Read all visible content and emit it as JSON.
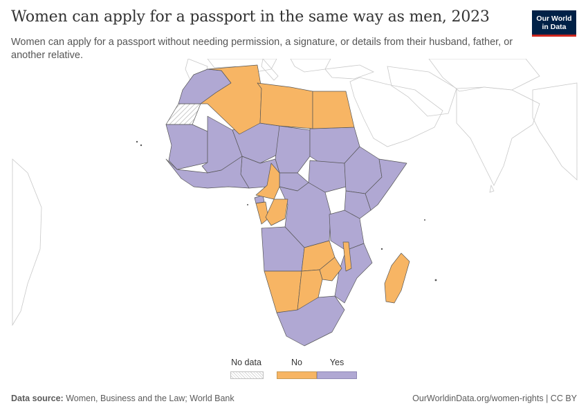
{
  "header": {
    "title": "Women can apply for a passport in the same way as men, 2023",
    "subtitle": "Women can apply for a passport without needing permission, a signature, or details from their husband, father, or another relative."
  },
  "logo": {
    "line1": "Our World",
    "line2": "in Data"
  },
  "colors": {
    "no": "#f7b564",
    "yes": "#b0a8d3",
    "border": "#555555",
    "land": "#ffffff",
    "no_data": "#e6e6e6"
  },
  "legend": {
    "items": [
      {
        "label": "No data",
        "category": "no_data"
      },
      {
        "label": "No",
        "category": "no"
      },
      {
        "label": "Yes",
        "category": "yes"
      }
    ]
  },
  "map_data": {
    "region": "Africa",
    "year": 2023,
    "countries_no": [
      "Algeria",
      "Libya",
      "Egypt",
      "Cameroon",
      "Gabon",
      "Republic of the Congo",
      "Zambia",
      "Malawi",
      "Zimbabwe",
      "Namibia",
      "Botswana",
      "Madagascar"
    ],
    "countries_no_data": [
      "Western Sahara"
    ]
  },
  "footer": {
    "source_label": "Data source:",
    "source_text": "Women, Business and the Law; World Bank",
    "credit": "OurWorldinData.org/women-rights | CC BY"
  }
}
